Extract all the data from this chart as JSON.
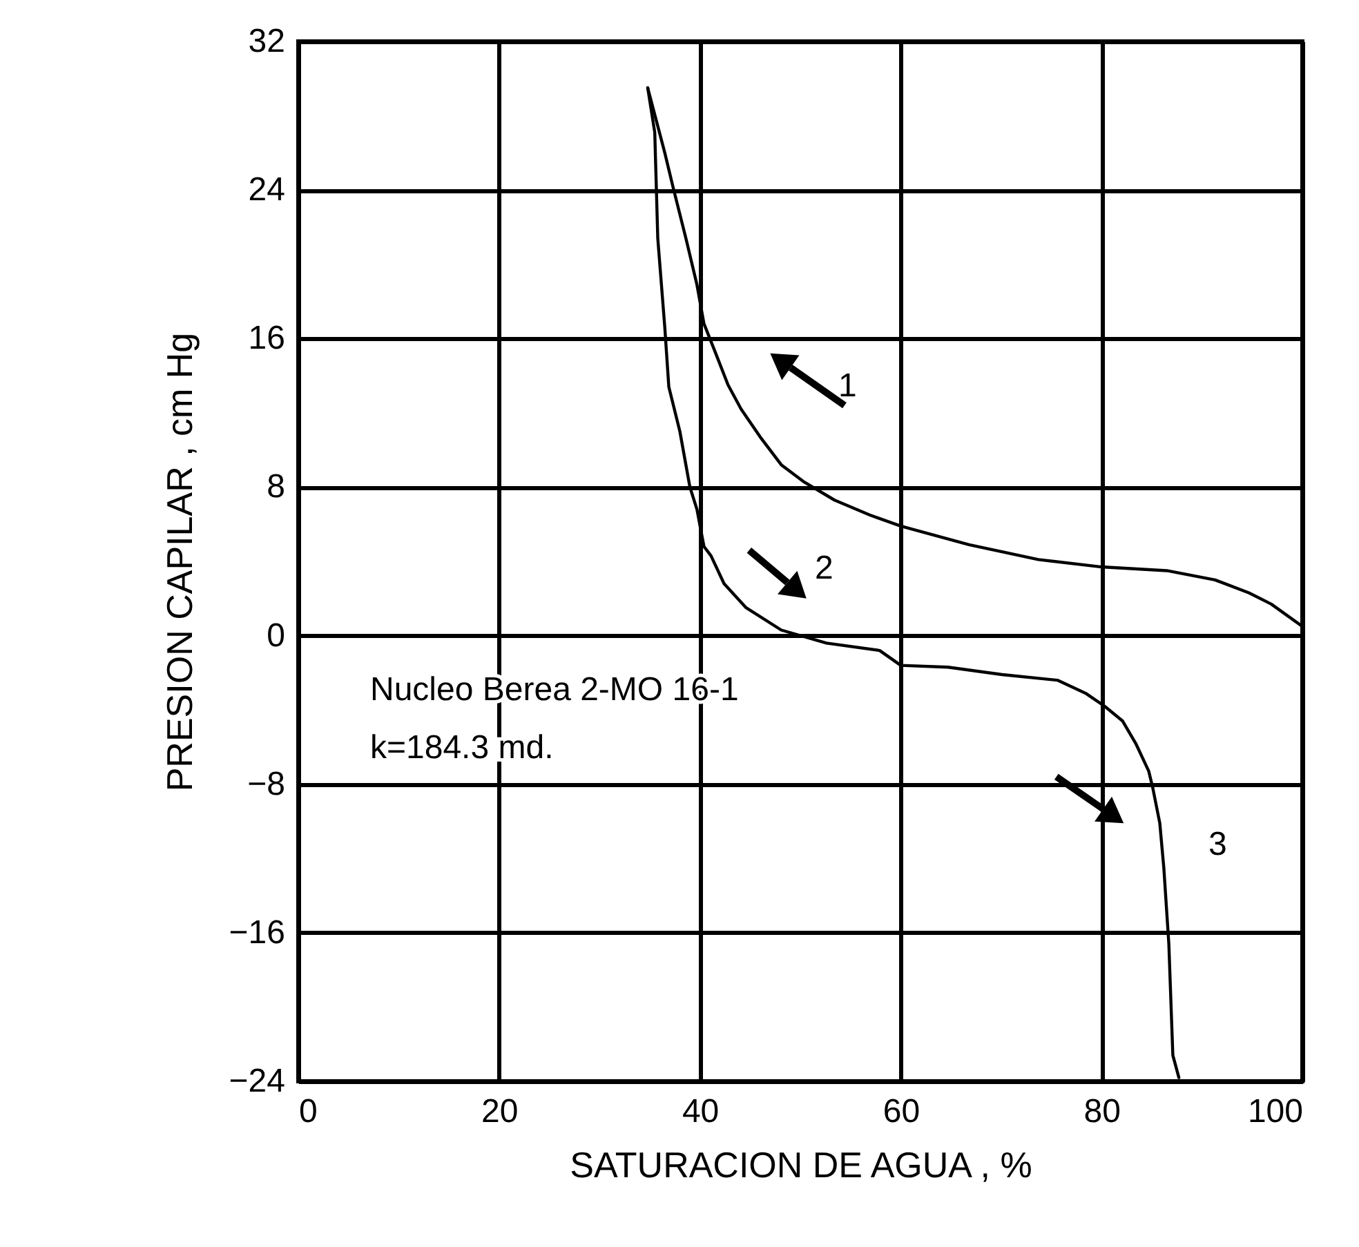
{
  "chart_data": {
    "type": "line",
    "xlabel": "SATURACION DE AGUA , %",
    "ylabel": "PRESION CAPILAR , cm Hg",
    "xlim": [
      0,
      100
    ],
    "xticks": [
      0,
      20,
      40,
      60,
      80,
      100
    ],
    "ylim": [
      -24,
      32
    ],
    "yticks": [
      -24,
      -16,
      -8,
      0,
      8,
      16,
      24,
      32
    ],
    "grid": true,
    "series": [
      {
        "color": "#000000",
        "x": [
          34.8,
          36.5,
          37.3,
          38.6,
          39.7,
          40.4,
          41.5,
          42.8,
          44.1,
          46.0,
          48.1,
          50.3,
          53.4,
          56.9,
          60,
          66.8,
          73.7,
          80,
          86.5,
          91.3,
          94.7,
          96.9,
          100
        ],
        "values": [
          29.5,
          26.0,
          24.2,
          21.4,
          18.9,
          16.8,
          15.3,
          13.5,
          12.2,
          10.7,
          9.2,
          8.3,
          7.3,
          6.5,
          5.9,
          4.9,
          4.1,
          3.7,
          3.5,
          3.0,
          2.3,
          1.7,
          0.5
        ]
      },
      {
        "color": "#000000",
        "x": [
          34.8,
          35.5,
          35.8,
          36.5,
          36.9,
          38.0,
          39.0,
          39.7,
          40.4,
          41.1,
          42.4,
          44.6,
          48.1,
          52.6,
          57.9,
          60,
          64.7,
          70.1,
          75.6,
          78.4,
          80.3,
          82.1,
          83.4,
          84.7,
          85.1,
          85.8,
          86.2,
          86.7,
          87.1,
          87.7
        ],
        "values": [
          29.5,
          27.1,
          21.4,
          16.6,
          13.4,
          11.0,
          8.0,
          6.8,
          4.8,
          4.3,
          2.8,
          1.5,
          0.3,
          -0.4,
          -0.8,
          -1.6,
          -1.7,
          -2.1,
          -2.4,
          -3.1,
          -3.8,
          -4.6,
          -5.8,
          -7.3,
          -8.2,
          -10.1,
          -12.5,
          -16.6,
          -22.6,
          -23.8
        ]
      }
    ],
    "annotations": [
      "Nucleo Berea 2-MO 16-1",
      "k=184.3 md.",
      "1",
      "2",
      "3"
    ]
  }
}
